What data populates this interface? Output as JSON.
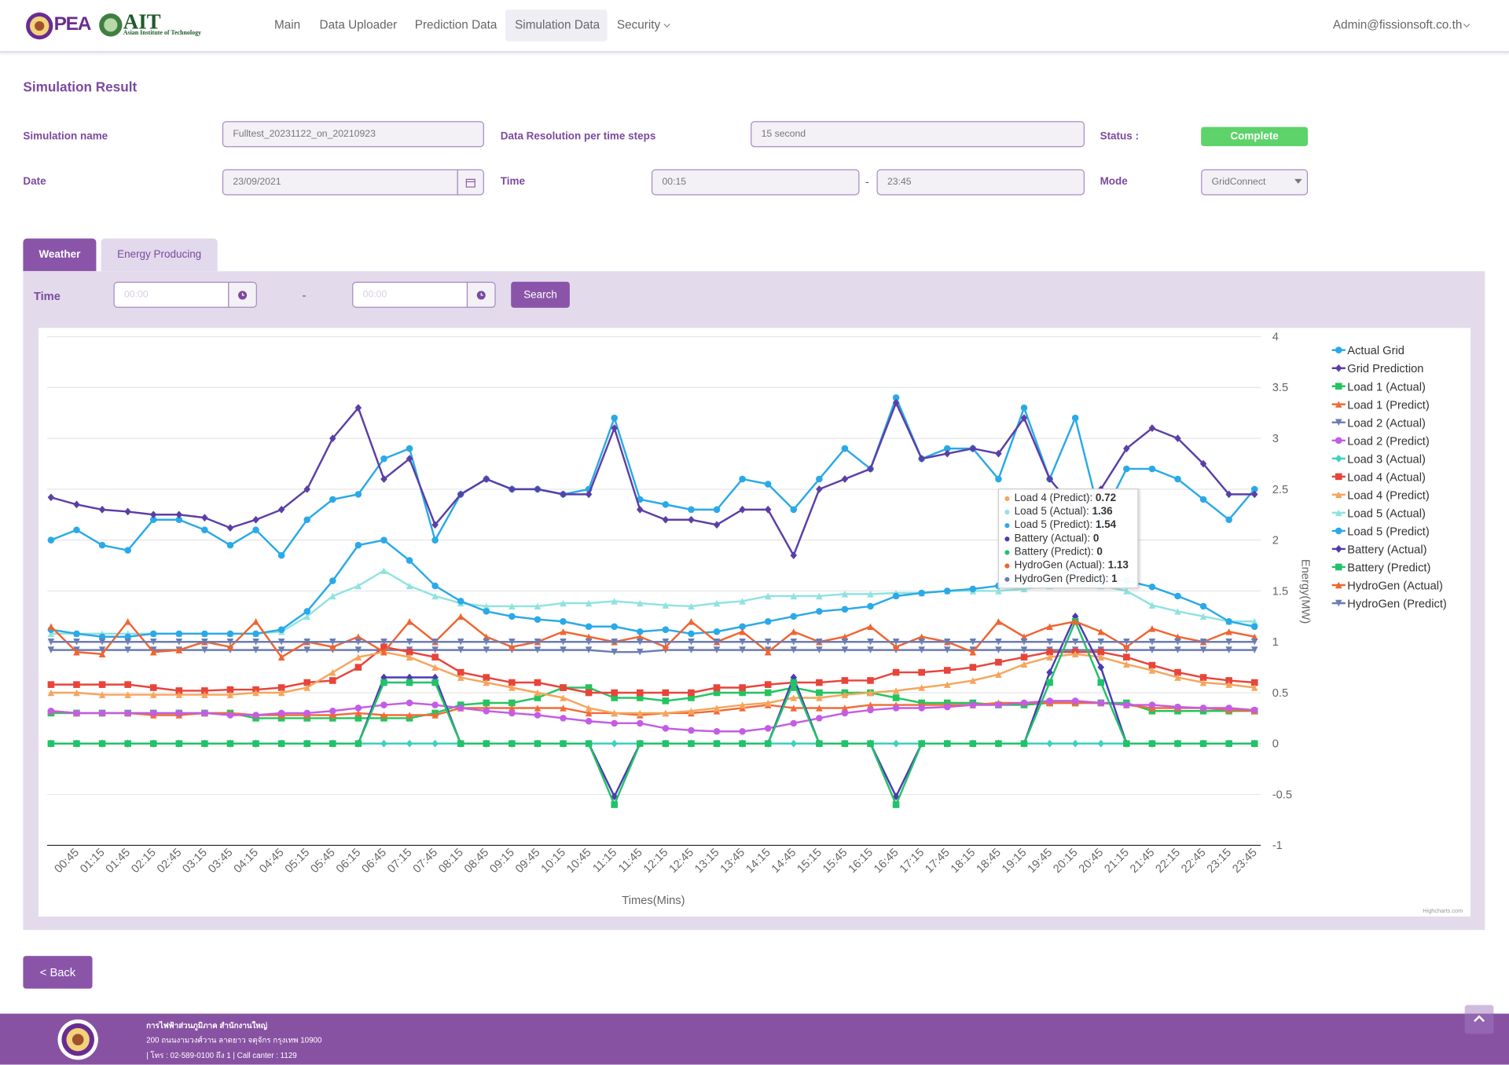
{
  "nav": {
    "brand_pea": "PEA",
    "brand_ait": "AIT",
    "brand_ait_sub": "Asian Institute of Technology",
    "items": [
      "Main",
      "Data Uploader",
      "Prediction Data",
      "Simulation Data",
      "Security"
    ],
    "user": "Admin@fissionsoft.co.th"
  },
  "page_title": "Simulation Result",
  "form": {
    "simulation_name_label": "Simulation name",
    "simulation_name": "Fulltest_20231122_on_20210923",
    "resolution_label": "Data Resolution per time steps",
    "resolution": "15 second",
    "status_label": "Status :",
    "status": "Complete",
    "date_label": "Date",
    "date": "23/09/2021",
    "time_label": "Time",
    "time_from": "00:15",
    "separator": "-",
    "time_to": "23:45",
    "mode_label": "Mode",
    "mode": "GridConnect"
  },
  "tabs": [
    "Weather",
    "Energy Producing"
  ],
  "filter": {
    "time_label": "Time",
    "from_placeholder": "00:00",
    "separator": "-",
    "to_placeholder": "00:00",
    "search": "Search"
  },
  "chart_data": {
    "type": "line",
    "x_label": "Times(Mins)",
    "y_label": "Energy(MW)",
    "credits": "Highcharts.com",
    "ylim": [
      -1,
      4
    ],
    "yticks": [
      -1,
      -0.5,
      0,
      0.5,
      1,
      1.5,
      2,
      2.5,
      3,
      3.5,
      4
    ],
    "grid": true,
    "legend": "right",
    "categories": [
      null,
      "00:45",
      "01:15",
      "01:45",
      "02:15",
      "02:45",
      "03:15",
      "03:45",
      "04:15",
      "04:45",
      "05:15",
      "05:45",
      "06:15",
      "06:45",
      "07:15",
      "07:45",
      "08:15",
      "08:45",
      "09:15",
      "09:45",
      "10:15",
      "10:45",
      "11:15",
      "11:45",
      "12:15",
      "12:45",
      "13:15",
      "13:45",
      "14:15",
      "14:45",
      "15:15",
      "15:45",
      "16:15",
      "16:45",
      "17:15",
      "17:45",
      "18:15",
      "18:45",
      "19:15",
      "19:45",
      "20:15",
      "20:45",
      "21:15",
      "21:45",
      "22:15",
      "22:45",
      "23:15",
      "23:45"
    ],
    "series": [
      {
        "name": "Actual Grid",
        "color": "#2aa9e8",
        "marker": "circle",
        "values": [
          2.0,
          2.1,
          1.95,
          1.9,
          2.2,
          2.2,
          2.1,
          1.95,
          2.1,
          1.85,
          2.2,
          2.4,
          2.45,
          2.8,
          2.9,
          2.0,
          2.45,
          2.6,
          2.5,
          2.5,
          2.45,
          2.5,
          3.2,
          2.4,
          2.35,
          2.3,
          2.3,
          2.6,
          2.55,
          2.3,
          2.6,
          2.9,
          2.7,
          3.4,
          2.8,
          2.9,
          2.9,
          2.6,
          3.3,
          2.6,
          3.2,
          2.2,
          2.7,
          2.7,
          2.6,
          2.4,
          2.2,
          2.5
        ]
      },
      {
        "name": "Grid Prediction",
        "color": "#5b3fa6",
        "marker": "diamond",
        "values": [
          2.42,
          2.35,
          2.3,
          2.28,
          2.25,
          2.25,
          2.22,
          2.12,
          2.2,
          2.3,
          2.5,
          3.0,
          3.3,
          2.6,
          2.8,
          2.15,
          2.45,
          2.6,
          2.5,
          2.5,
          2.45,
          2.45,
          3.1,
          2.3,
          2.2,
          2.2,
          2.15,
          2.3,
          2.3,
          1.85,
          2.5,
          2.6,
          2.7,
          3.35,
          2.8,
          2.85,
          2.9,
          2.85,
          3.2,
          2.6,
          2.3,
          2.5,
          2.9,
          3.1,
          3.0,
          2.75,
          2.45,
          2.45
        ]
      },
      {
        "name": "Load 1 (Actual)",
        "color": "#22c55e",
        "marker": "square",
        "values": [
          0.3,
          0.3,
          0.3,
          0.3,
          0.3,
          0.3,
          0.3,
          0.3,
          0.25,
          0.25,
          0.25,
          0.25,
          0.25,
          0.25,
          0.25,
          0.3,
          0.38,
          0.4,
          0.4,
          0.45,
          0.55,
          0.55,
          0.45,
          0.45,
          0.42,
          0.45,
          0.5,
          0.5,
          0.5,
          0.55,
          0.5,
          0.5,
          0.5,
          0.45,
          0.4,
          0.4,
          0.4,
          0.38,
          0.38,
          0.4,
          0.4,
          0.4,
          0.4,
          0.32,
          0.32,
          0.32,
          0.32,
          0.32
        ]
      },
      {
        "name": "Load 1 (Predict)",
        "color": "#f26b38",
        "marker": "triangle",
        "values": [
          0.32,
          0.3,
          0.3,
          0.3,
          0.28,
          0.28,
          0.3,
          0.3,
          0.28,
          0.28,
          0.28,
          0.28,
          0.3,
          0.28,
          0.28,
          0.28,
          0.35,
          0.35,
          0.35,
          0.35,
          0.35,
          0.3,
          0.3,
          0.28,
          0.3,
          0.3,
          0.32,
          0.35,
          0.38,
          0.35,
          0.35,
          0.35,
          0.38,
          0.38,
          0.38,
          0.38,
          0.38,
          0.4,
          0.4,
          0.4,
          0.4,
          0.4,
          0.38,
          0.35,
          0.35,
          0.35,
          0.33,
          0.32
        ]
      },
      {
        "name": "Load 2 (Actual)",
        "color": "#6b7db3",
        "marker": "triangle-down",
        "values": [
          0.92,
          0.92,
          0.92,
          0.92,
          0.92,
          0.92,
          0.92,
          0.92,
          0.92,
          0.92,
          0.92,
          0.92,
          0.92,
          0.92,
          0.92,
          0.92,
          0.92,
          0.92,
          0.92,
          0.92,
          0.92,
          0.92,
          0.9,
          0.9,
          0.92,
          0.92,
          0.92,
          0.92,
          0.92,
          0.92,
          0.92,
          0.92,
          0.92,
          0.92,
          0.92,
          0.92,
          0.92,
          0.92,
          0.92,
          0.92,
          0.92,
          0.92,
          0.92,
          0.92,
          0.92,
          0.92,
          0.92,
          0.92
        ]
      },
      {
        "name": "Load 2 (Predict)",
        "color": "#c45ce6",
        "marker": "circle",
        "values": [
          0.32,
          0.3,
          0.3,
          0.3,
          0.3,
          0.3,
          0.3,
          0.28,
          0.28,
          0.3,
          0.3,
          0.32,
          0.35,
          0.38,
          0.4,
          0.38,
          0.35,
          0.32,
          0.3,
          0.28,
          0.25,
          0.22,
          0.2,
          0.2,
          0.15,
          0.13,
          0.12,
          0.12,
          0.15,
          0.2,
          0.25,
          0.3,
          0.33,
          0.35,
          0.35,
          0.36,
          0.38,
          0.38,
          0.4,
          0.42,
          0.42,
          0.4,
          0.38,
          0.38,
          0.36,
          0.35,
          0.35,
          0.33
        ]
      },
      {
        "name": "Load 3 (Actual)",
        "color": "#3cd1c1",
        "marker": "diamond",
        "values": [
          0,
          0,
          0,
          0,
          0,
          0,
          0,
          0,
          0,
          0,
          0,
          0,
          0,
          0,
          0,
          0,
          0,
          0,
          0,
          0,
          0,
          0,
          0,
          0,
          0,
          0,
          0,
          0,
          0,
          0,
          0,
          0,
          0,
          0,
          0,
          0,
          0,
          0,
          0,
          0,
          0,
          0,
          0,
          0,
          0,
          0,
          0,
          0
        ]
      },
      {
        "name": "Load 4 (Actual)",
        "color": "#e8443a",
        "marker": "square",
        "values": [
          0.58,
          0.58,
          0.58,
          0.58,
          0.55,
          0.52,
          0.52,
          0.53,
          0.53,
          0.55,
          0.6,
          0.62,
          0.75,
          0.95,
          0.9,
          0.85,
          0.7,
          0.65,
          0.6,
          0.6,
          0.55,
          0.5,
          0.5,
          0.5,
          0.5,
          0.5,
          0.55,
          0.55,
          0.58,
          0.6,
          0.6,
          0.62,
          0.62,
          0.7,
          0.7,
          0.72,
          0.75,
          0.8,
          0.85,
          0.9,
          0.9,
          0.9,
          0.85,
          0.77,
          0.7,
          0.65,
          0.62,
          0.6
        ]
      },
      {
        "name": "Load 4 (Predict)",
        "color": "#f5a55c",
        "marker": "triangle",
        "values": [
          0.5,
          0.5,
          0.48,
          0.48,
          0.48,
          0.48,
          0.48,
          0.48,
          0.5,
          0.5,
          0.55,
          0.7,
          0.85,
          0.9,
          0.85,
          0.75,
          0.65,
          0.6,
          0.55,
          0.5,
          0.45,
          0.35,
          0.3,
          0.3,
          0.3,
          0.32,
          0.35,
          0.38,
          0.4,
          0.45,
          0.45,
          0.48,
          0.5,
          0.52,
          0.55,
          0.58,
          0.62,
          0.68,
          0.78,
          0.85,
          0.88,
          0.85,
          0.78,
          0.72,
          0.65,
          0.6,
          0.58,
          0.55
        ]
      },
      {
        "name": "Load 5 (Actual)",
        "color": "#8fe3df",
        "marker": "triangle",
        "values": [
          1.08,
          1.08,
          1.08,
          1.08,
          1.08,
          1.08,
          1.08,
          1.08,
          1.08,
          1.1,
          1.25,
          1.45,
          1.55,
          1.7,
          1.55,
          1.45,
          1.38,
          1.35,
          1.35,
          1.35,
          1.38,
          1.38,
          1.4,
          1.38,
          1.36,
          1.35,
          1.38,
          1.4,
          1.45,
          1.45,
          1.45,
          1.47,
          1.47,
          1.48,
          1.48,
          1.5,
          1.5,
          1.5,
          1.52,
          1.55,
          1.58,
          1.55,
          1.5,
          1.36,
          1.3,
          1.25,
          1.2,
          1.2
        ]
      },
      {
        "name": "Load 5 (Predict)",
        "color": "#2aa9e8",
        "marker": "circle",
        "values": [
          1.12,
          1.08,
          1.05,
          1.05,
          1.08,
          1.08,
          1.08,
          1.08,
          1.08,
          1.12,
          1.3,
          1.6,
          1.95,
          2.0,
          1.8,
          1.55,
          1.4,
          1.3,
          1.25,
          1.22,
          1.2,
          1.15,
          1.15,
          1.1,
          1.12,
          1.08,
          1.1,
          1.15,
          1.2,
          1.25,
          1.3,
          1.32,
          1.35,
          1.45,
          1.48,
          1.5,
          1.52,
          1.55,
          1.6,
          1.65,
          1.7,
          1.62,
          1.6,
          1.54,
          1.45,
          1.35,
          1.2,
          1.15
        ]
      },
      {
        "name": "Battery (Actual)",
        "color": "#4b3bb0",
        "marker": "diamond",
        "values": [
          0,
          0,
          0,
          0,
          0,
          0,
          0,
          0,
          0,
          0,
          0,
          0,
          0,
          0.65,
          0.65,
          0.65,
          0,
          0,
          0,
          0,
          0,
          0,
          -0.52,
          0,
          0,
          0,
          0,
          0,
          0,
          0.65,
          0,
          0,
          0,
          -0.52,
          0,
          0,
          0,
          0,
          0,
          0.7,
          1.25,
          0.75,
          0,
          0,
          0,
          0,
          0,
          0
        ]
      },
      {
        "name": "Battery (Predict)",
        "color": "#21c26a",
        "marker": "square",
        "values": [
          0,
          0,
          0,
          0,
          0,
          0,
          0,
          0,
          0,
          0,
          0,
          0,
          0,
          0.6,
          0.6,
          0.6,
          0,
          0,
          0,
          0,
          0,
          0,
          -0.6,
          0,
          0,
          0,
          0,
          0,
          0,
          0.6,
          0,
          0,
          0,
          -0.6,
          0,
          0,
          0,
          0,
          0,
          0.6,
          1.2,
          0.6,
          0,
          0,
          0,
          0,
          0,
          0
        ]
      },
      {
        "name": "HydroGen (Actual)",
        "color": "#f06430",
        "marker": "triangle",
        "values": [
          1.15,
          0.9,
          0.88,
          1.2,
          0.9,
          0.92,
          1.0,
          0.95,
          1.2,
          0.85,
          1.0,
          0.95,
          1.05,
          0.9,
          1.2,
          1.0,
          1.25,
          1.05,
          0.95,
          1.0,
          1.1,
          1.05,
          1.0,
          1.05,
          0.95,
          1.2,
          1.0,
          1.1,
          0.9,
          1.1,
          1.0,
          1.05,
          1.15,
          0.95,
          1.05,
          1.0,
          0.9,
          1.2,
          1.05,
          1.15,
          1.2,
          1.1,
          0.95,
          1.13,
          1.05,
          1.0,
          1.1,
          1.05
        ]
      },
      {
        "name": "HydroGen (Predict)",
        "color": "#6b7db3",
        "marker": "triangle-down",
        "values": [
          1,
          1,
          1,
          1,
          1,
          1,
          1,
          1,
          1,
          1,
          1,
          1,
          1,
          1,
          1,
          1,
          1,
          1,
          1,
          1,
          1,
          1,
          1,
          1,
          1,
          1,
          1,
          1,
          1,
          1,
          1,
          1,
          1,
          1,
          1,
          1,
          1,
          1,
          1,
          1,
          1,
          1,
          1,
          1,
          1,
          1,
          1,
          1
        ]
      }
    ],
    "tooltip": {
      "rows": [
        {
          "label": "Load 4 (Predict): ",
          "value": 0.72
        },
        {
          "label": "Load 5 (Actual): ",
          "value": 1.36
        },
        {
          "label": "Load 5 (Predict): ",
          "value": 1.54
        },
        {
          "label": "Battery (Actual): ",
          "value": 0
        },
        {
          "label": "Battery (Predict): ",
          "value": 0
        },
        {
          "label": "HydroGen (Actual): ",
          "value": 1.13
        },
        {
          "label": "HydroGen (Predict): ",
          "value": 1
        }
      ]
    }
  },
  "back": "< Back",
  "footer": {
    "lines": [
      "การไฟฟ้าส่วนภูมิภาค สำนักงานใหญ่",
      "200 ถนนงามวงศ์วาน ลาดยาว จตุจักร กรุงเทพ 10900",
      "| โทร : 02-589-0100 ถึง 1 | Call canter : 1129"
    ]
  }
}
